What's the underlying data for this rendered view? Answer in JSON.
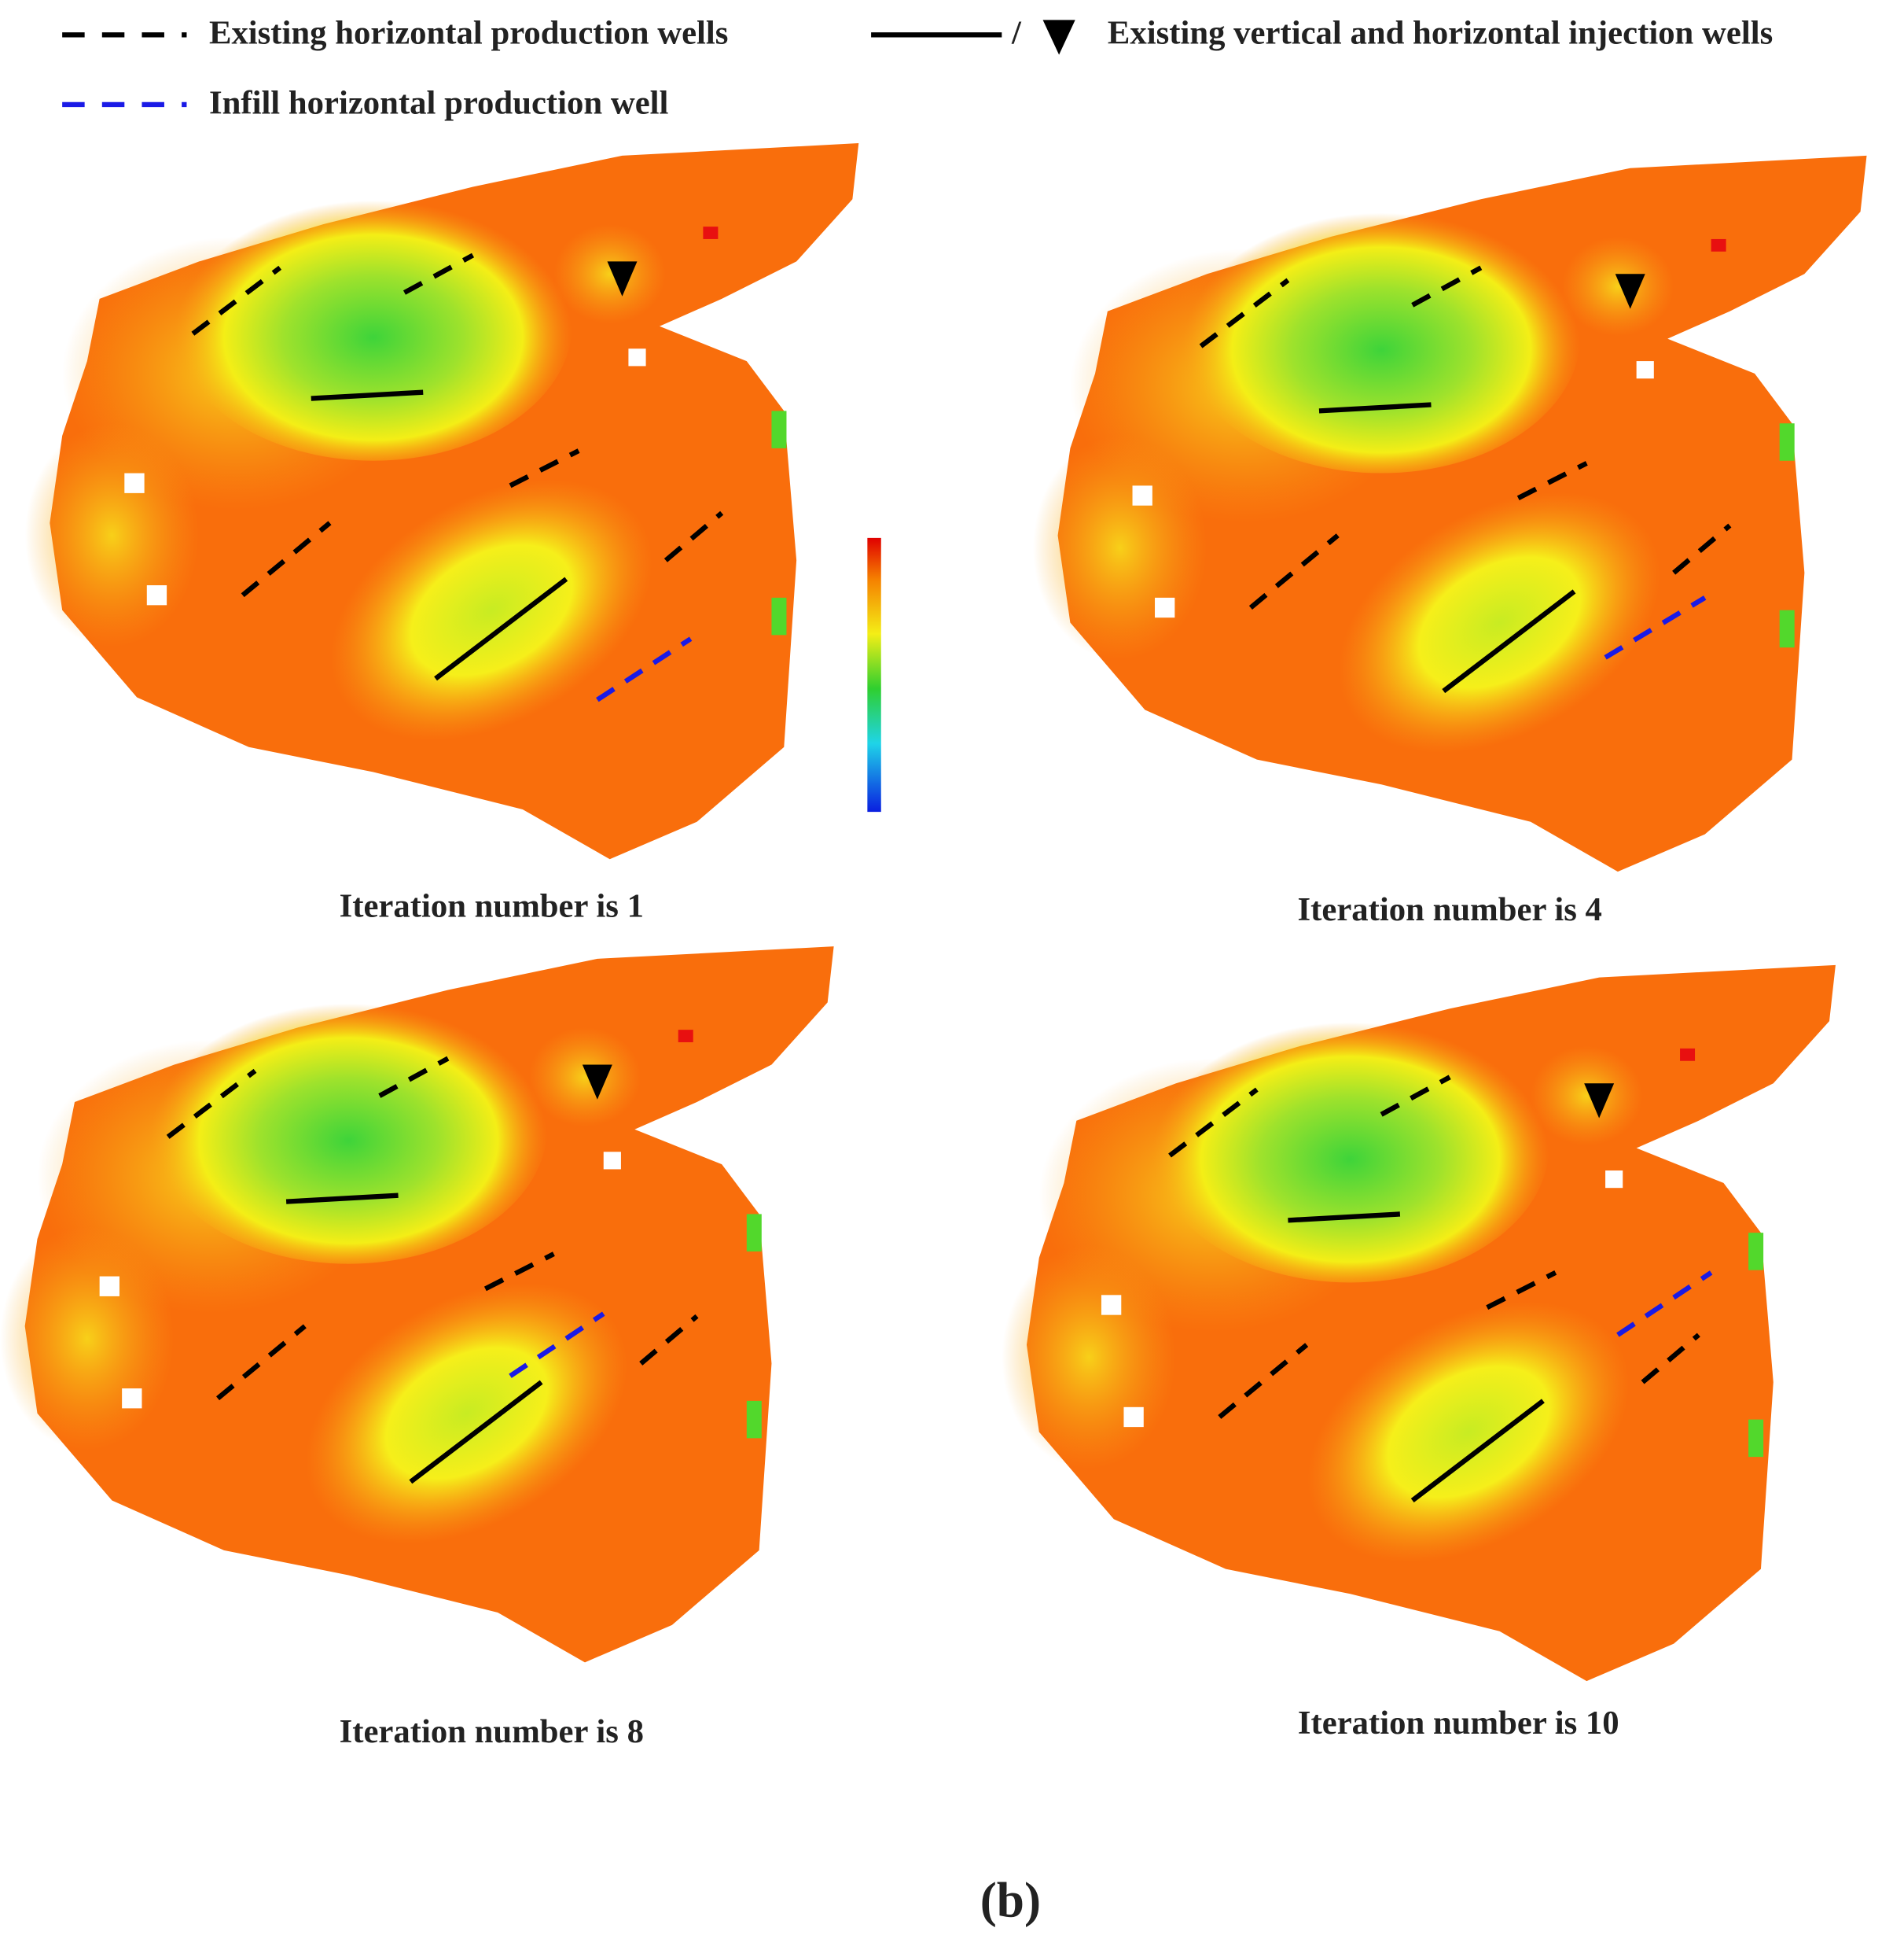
{
  "legend": {
    "existing_production": "Existing horizontal production wells",
    "separator": "/",
    "existing_injection": "Existing vertical and horizontal injection wells",
    "infill_production": "Infill horizontal production well"
  },
  "panels": [
    {
      "caption": "Iteration number is 1"
    },
    {
      "caption": "Iteration number is 4"
    },
    {
      "caption": "Iteration number is 8"
    },
    {
      "caption": "Iteration number is 10"
    }
  ],
  "figure_label": "(b)"
}
